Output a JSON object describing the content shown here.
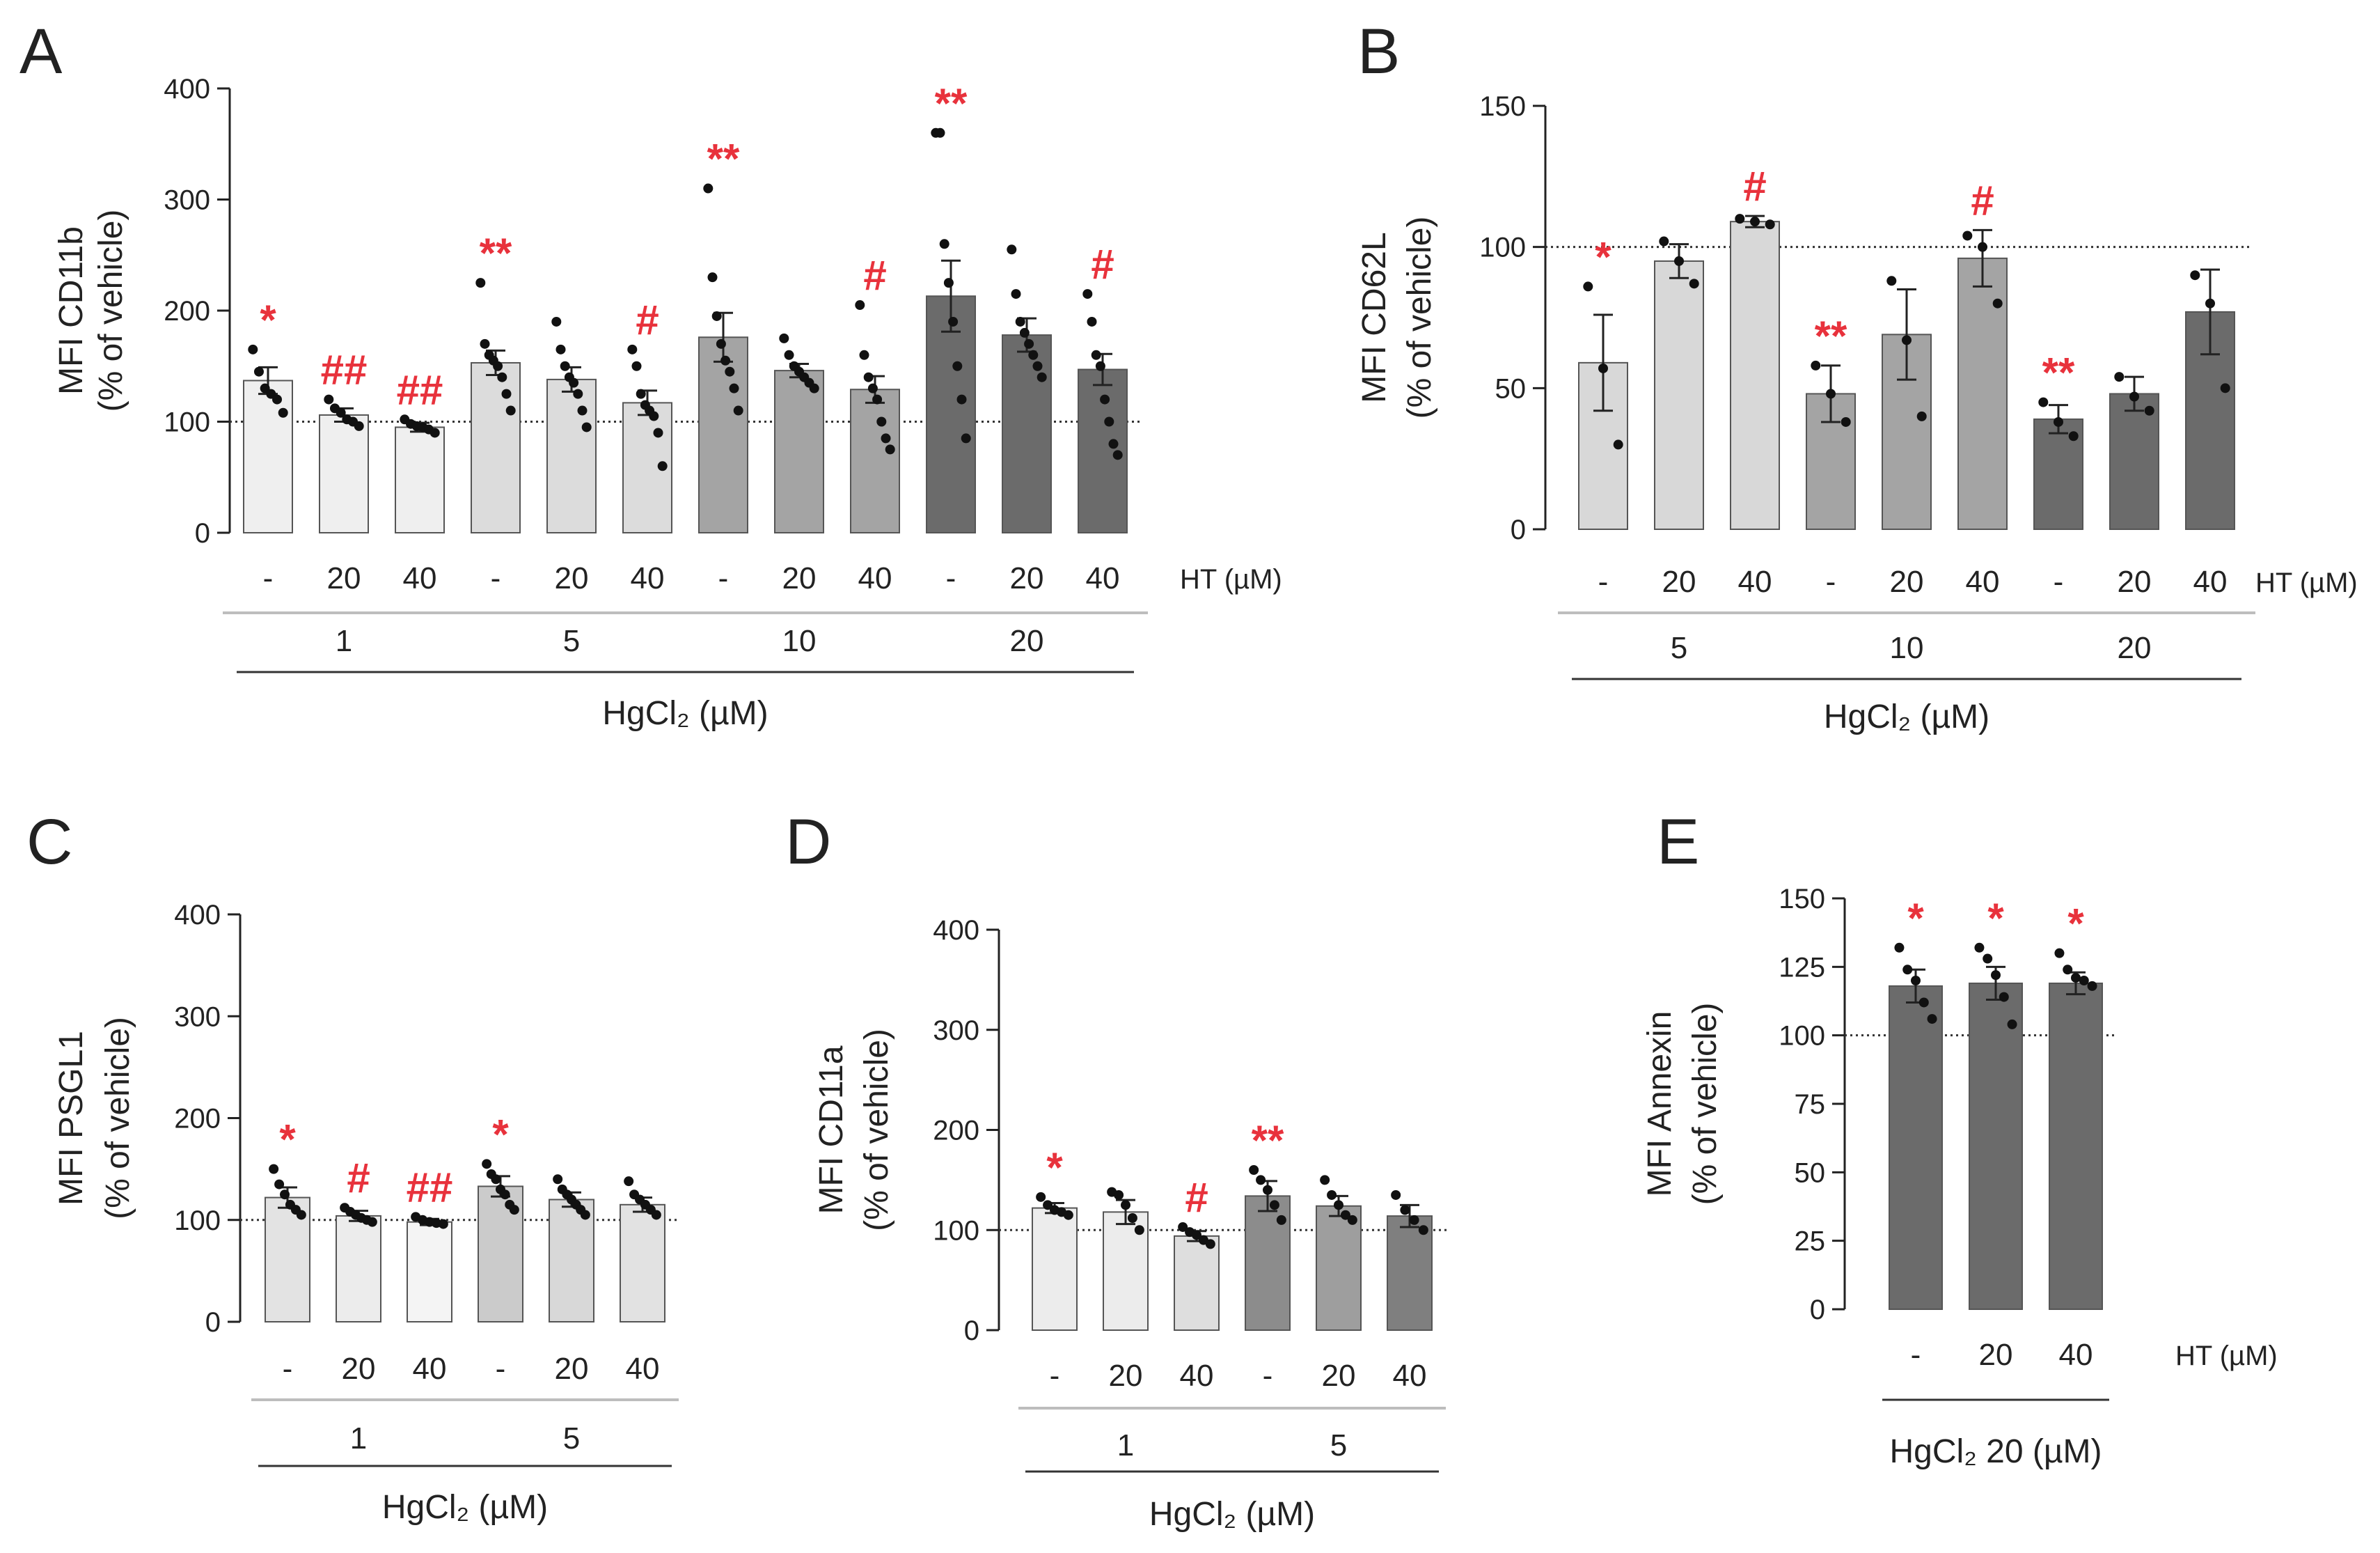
{
  "figure": {
    "ht_label": "HT (µM)",
    "hg_label": "HgCl₂ (µM)",
    "hg20_label": "HgCl₂ 20 (µM)"
  },
  "colors": {
    "significance": "#e8323c",
    "axis": "#222222",
    "dot": "#111111",
    "reference": "#333333",
    "level_1": "#ececec",
    "level_5": "#d4d4d4",
    "level_10": "#a9a9a9",
    "level_20": "#6c6c6c"
  },
  "chart_data": [
    {
      "panel": "A",
      "type": "bar",
      "ylabel": [
        "MFI CD11b",
        "(% of vehicle)"
      ],
      "ylim": [
        0,
        400
      ],
      "yticks": [
        0,
        100,
        200,
        300,
        400
      ],
      "reference_line": 100,
      "categories": [
        "-",
        "20",
        "40",
        "-",
        "20",
        "40",
        "-",
        "20",
        "40",
        "-",
        "20",
        "40"
      ],
      "groups": [
        {
          "label": "1",
          "start": 0,
          "end": 2
        },
        {
          "label": "5",
          "start": 3,
          "end": 5
        },
        {
          "label": "10",
          "start": 6,
          "end": 8
        },
        {
          "label": "20",
          "start": 9,
          "end": 11
        }
      ],
      "values": [
        137,
        106,
        95,
        153,
        138,
        117,
        176,
        146,
        129,
        213,
        178,
        147
      ],
      "errors": [
        12,
        6,
        4,
        11,
        11,
        11,
        22,
        6,
        12,
        32,
        15,
        14
      ],
      "fills": [
        "#efefef",
        "#efefef",
        "#efefef",
        "#dcdcdc",
        "#dcdcdc",
        "#dcdcdc",
        "#a4a4a4",
        "#a4a4a4",
        "#a4a4a4",
        "#6b6b6b",
        "#6b6b6b",
        "#6b6b6b"
      ],
      "points": [
        [
          165,
          145,
          130,
          125,
          120,
          108
        ],
        [
          120,
          112,
          108,
          102,
          100,
          96
        ],
        [
          102,
          98,
          96,
          95,
          93,
          90
        ],
        [
          225,
          170,
          160,
          155,
          150,
          140,
          125,
          110
        ],
        [
          190,
          165,
          150,
          140,
          135,
          125,
          110,
          95
        ],
        [
          165,
          150,
          125,
          115,
          110,
          105,
          90,
          60
        ],
        [
          310,
          230,
          195,
          170,
          155,
          145,
          130,
          110
        ],
        [
          175,
          160,
          150,
          145,
          140,
          135,
          130
        ],
        [
          205,
          160,
          140,
          130,
          120,
          100,
          85,
          75
        ],
        [
          360,
          360,
          260,
          225,
          190,
          150,
          120,
          85
        ],
        [
          255,
          215,
          190,
          180,
          170,
          160,
          150,
          140
        ],
        [
          215,
          190,
          160,
          150,
          120,
          100,
          80,
          70
        ]
      ],
      "annotations": [
        "*",
        "##",
        "##",
        "**",
        "",
        "#",
        "**",
        "",
        "#",
        "**",
        "",
        "#"
      ]
    },
    {
      "panel": "B",
      "type": "bar",
      "ylabel": [
        "MFI CD62L",
        "(% of vehicle)"
      ],
      "ylim": [
        0,
        150
      ],
      "yticks": [
        0,
        50,
        100,
        150
      ],
      "reference_line": 100,
      "categories": [
        "-",
        "20",
        "40",
        "-",
        "20",
        "40",
        "-",
        "20",
        "40"
      ],
      "groups": [
        {
          "label": "5",
          "start": 0,
          "end": 2
        },
        {
          "label": "10",
          "start": 3,
          "end": 5
        },
        {
          "label": "20",
          "start": 6,
          "end": 8
        }
      ],
      "values": [
        59,
        95,
        109,
        48,
        69,
        96,
        39,
        48,
        77
      ],
      "errors": [
        17,
        6,
        2,
        10,
        16,
        10,
        5,
        6,
        15
      ],
      "fills": [
        "#d8d8d8",
        "#d8d8d8",
        "#d8d8d8",
        "#a4a4a4",
        "#a4a4a4",
        "#a4a4a4",
        "#6b6b6b",
        "#6b6b6b",
        "#6b6b6b"
      ],
      "points": [
        [
          86,
          57,
          30
        ],
        [
          102,
          95,
          87
        ],
        [
          110,
          109,
          108
        ],
        [
          58,
          48,
          38
        ],
        [
          88,
          67,
          40
        ],
        [
          104,
          100,
          80
        ],
        [
          45,
          38,
          33
        ],
        [
          54,
          47,
          42
        ],
        [
          90,
          80,
          50
        ]
      ],
      "annotations": [
        "*",
        "",
        "#",
        "**",
        "",
        "#",
        "**",
        "",
        ""
      ]
    },
    {
      "panel": "C",
      "type": "bar",
      "ylabel": [
        "MFI PSGL1",
        "(% of vehicle)"
      ],
      "ylim": [
        0,
        400
      ],
      "yticks": [
        0,
        100,
        200,
        300,
        400
      ],
      "reference_line": 100,
      "categories": [
        "-",
        "20",
        "40",
        "-",
        "20",
        "40"
      ],
      "groups": [
        {
          "label": "1",
          "start": 0,
          "end": 2
        },
        {
          "label": "5",
          "start": 3,
          "end": 5
        }
      ],
      "values": [
        122,
        104,
        98,
        133,
        120,
        115
      ],
      "errors": [
        10,
        5,
        3,
        10,
        7,
        7
      ],
      "fills": [
        "#e3e3e3",
        "#ececec",
        "#f4f4f4",
        "#cbcbcb",
        "#d8d8d8",
        "#e2e2e2"
      ],
      "points": [
        [
          150,
          135,
          125,
          115,
          110,
          105
        ],
        [
          112,
          108,
          105,
          102,
          100,
          98
        ],
        [
          103,
          100,
          98,
          97,
          96
        ],
        [
          155,
          145,
          140,
          130,
          125,
          115,
          110
        ],
        [
          140,
          130,
          125,
          120,
          115,
          110,
          105
        ],
        [
          138,
          125,
          120,
          115,
          110,
          105
        ]
      ],
      "annotations": [
        "*",
        "#",
        "##",
        "*",
        "",
        ""
      ]
    },
    {
      "panel": "D",
      "type": "bar",
      "ylabel": [
        "MFI CD11a",
        "(% of vehicle)"
      ],
      "ylim": [
        0,
        400
      ],
      "yticks": [
        0,
        100,
        200,
        300,
        400
      ],
      "reference_line": 100,
      "categories": [
        "-",
        "20",
        "40",
        "-",
        "20",
        "40"
      ],
      "groups": [
        {
          "label": "1",
          "start": 0,
          "end": 2
        },
        {
          "label": "5",
          "start": 3,
          "end": 5
        }
      ],
      "values": [
        122,
        118,
        94,
        134,
        124,
        114
      ],
      "errors": [
        5,
        12,
        5,
        15,
        10,
        11
      ],
      "fills": [
        "#ececec",
        "#ececec",
        "#dedede",
        "#8c8c8c",
        "#9e9e9e",
        "#7f7f7f"
      ],
      "points": [
        [
          133,
          125,
          120,
          118,
          115
        ],
        [
          138,
          135,
          125,
          112,
          100
        ],
        [
          103,
          98,
          95,
          90,
          86
        ],
        [
          160,
          150,
          140,
          125,
          110
        ],
        [
          150,
          135,
          125,
          115,
          110
        ],
        [
          135,
          120,
          110,
          100
        ]
      ],
      "annotations": [
        "*",
        "",
        "#",
        "**",
        "",
        ""
      ]
    },
    {
      "panel": "E",
      "type": "bar",
      "ylabel": [
        "MFI Annexin",
        "(% of vehicle)"
      ],
      "ylim": [
        0,
        150
      ],
      "yticks": [
        0,
        25,
        50,
        75,
        100,
        125,
        150
      ],
      "reference_line": 100,
      "categories": [
        "-",
        "20",
        "40"
      ],
      "groups": [],
      "values": [
        118,
        119,
        119
      ],
      "errors": [
        6,
        6,
        4
      ],
      "fills": [
        "#6b6b6b",
        "#6b6b6b",
        "#6b6b6b"
      ],
      "points": [
        [
          132,
          124,
          120,
          112,
          106
        ],
        [
          132,
          128,
          122,
          114,
          104
        ],
        [
          130,
          124,
          121,
          120,
          118
        ]
      ],
      "annotations": [
        "*",
        "*",
        "*"
      ]
    }
  ]
}
